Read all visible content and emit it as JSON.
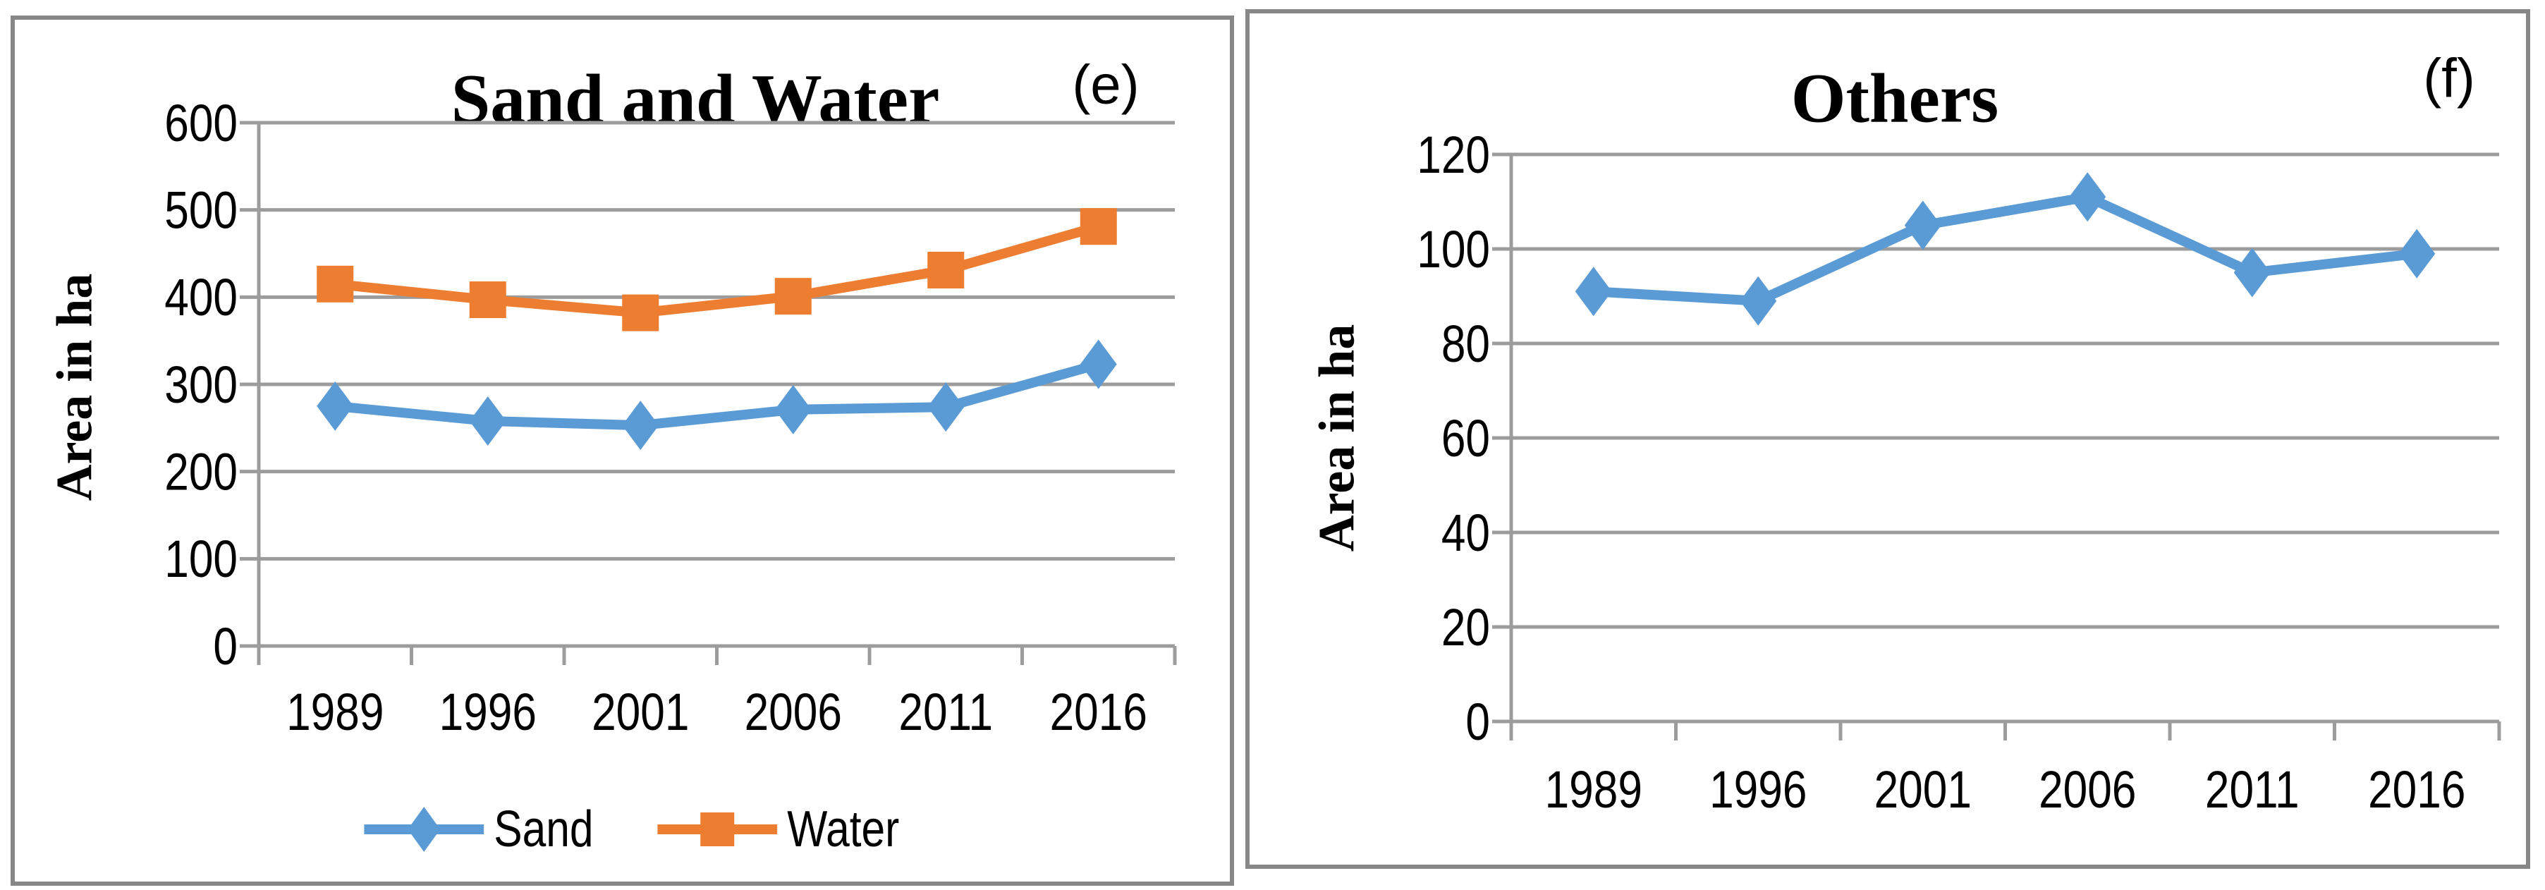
{
  "colors": {
    "series_blue": "#5B9BD5",
    "series_orange": "#ED7D31",
    "gridline": "#9C9C9C",
    "panel_border": "#878787"
  },
  "chart_data": [
    {
      "type": "line",
      "title": "Sand and Water",
      "panel_letter": "(e)",
      "ylabel": "Area in ha",
      "xlabel": "",
      "categories": [
        "1989",
        "1996",
        "2001",
        "2006",
        "2011",
        "2016"
      ],
      "series": [
        {
          "name": "Sand",
          "color": "#5B9BD5",
          "marker": "diamond",
          "values": [
            275,
            258,
            253,
            271,
            274,
            323
          ]
        },
        {
          "name": "Water",
          "color": "#ED7D31",
          "marker": "square",
          "values": [
            415,
            397,
            382,
            401,
            431,
            481
          ]
        }
      ],
      "ylim": [
        0,
        600
      ],
      "ytick_step": 100,
      "grid": true,
      "legend_position": "bottom"
    },
    {
      "type": "line",
      "title": "Others",
      "panel_letter": "(f)",
      "ylabel": "Area in ha",
      "xlabel": "",
      "categories": [
        "1989",
        "1996",
        "2001",
        "2006",
        "2011",
        "2016"
      ],
      "series": [
        {
          "name": "Others",
          "color": "#5B9BD5",
          "marker": "diamond",
          "values": [
            91,
            89,
            105,
            111,
            95,
            99
          ]
        }
      ],
      "ylim": [
        0,
        120
      ],
      "ytick_step": 20,
      "grid": true,
      "legend_position": "none"
    }
  ]
}
